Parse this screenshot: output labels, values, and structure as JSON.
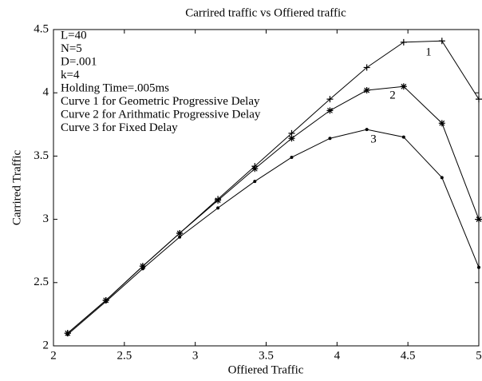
{
  "chart_data": {
    "type": "line",
    "title": "Carrired traffic vs Offiered traffic",
    "xlabel": "Offiered Traffic",
    "ylabel": "Carrired Traffic",
    "x": [
      2.1,
      2.37,
      2.63,
      2.89,
      3.16,
      3.42,
      3.68,
      3.95,
      4.21,
      4.47,
      4.74,
      5.0
    ],
    "series": [
      {
        "name": "1",
        "color": "#000000",
        "marker": "+",
        "values": [
          2.1,
          2.36,
          2.63,
          2.89,
          3.16,
          3.42,
          3.68,
          3.95,
          4.2,
          4.4,
          4.41,
          3.95
        ]
      },
      {
        "name": "2",
        "color": "#000000",
        "marker": "*",
        "values": [
          2.1,
          2.36,
          2.63,
          2.89,
          3.15,
          3.4,
          3.64,
          3.86,
          4.02,
          4.05,
          3.76,
          3.0
        ]
      },
      {
        "name": "3",
        "color": "#000000",
        "marker": ".",
        "values": [
          2.09,
          2.35,
          2.61,
          2.86,
          3.09,
          3.3,
          3.49,
          3.64,
          3.71,
          3.65,
          3.33,
          2.62
        ]
      }
    ],
    "annotations": [
      "L=40",
      "N=5",
      "D=.001",
      "k=4",
      "Holding Time=.005ms",
      "Curve 1 for Geometric Progressive Delay",
      "Curve 2 for Arithmatic Progressive Delay",
      "Curve 3 for Fixed Delay"
    ],
    "xlim": [
      2,
      5
    ],
    "ylim": [
      2,
      4.5
    ],
    "xticks": [
      2,
      2.5,
      3,
      3.5,
      4,
      4.5,
      5
    ],
    "yticks": [
      2,
      2.5,
      3,
      3.5,
      4,
      4.5
    ],
    "grid": false
  }
}
